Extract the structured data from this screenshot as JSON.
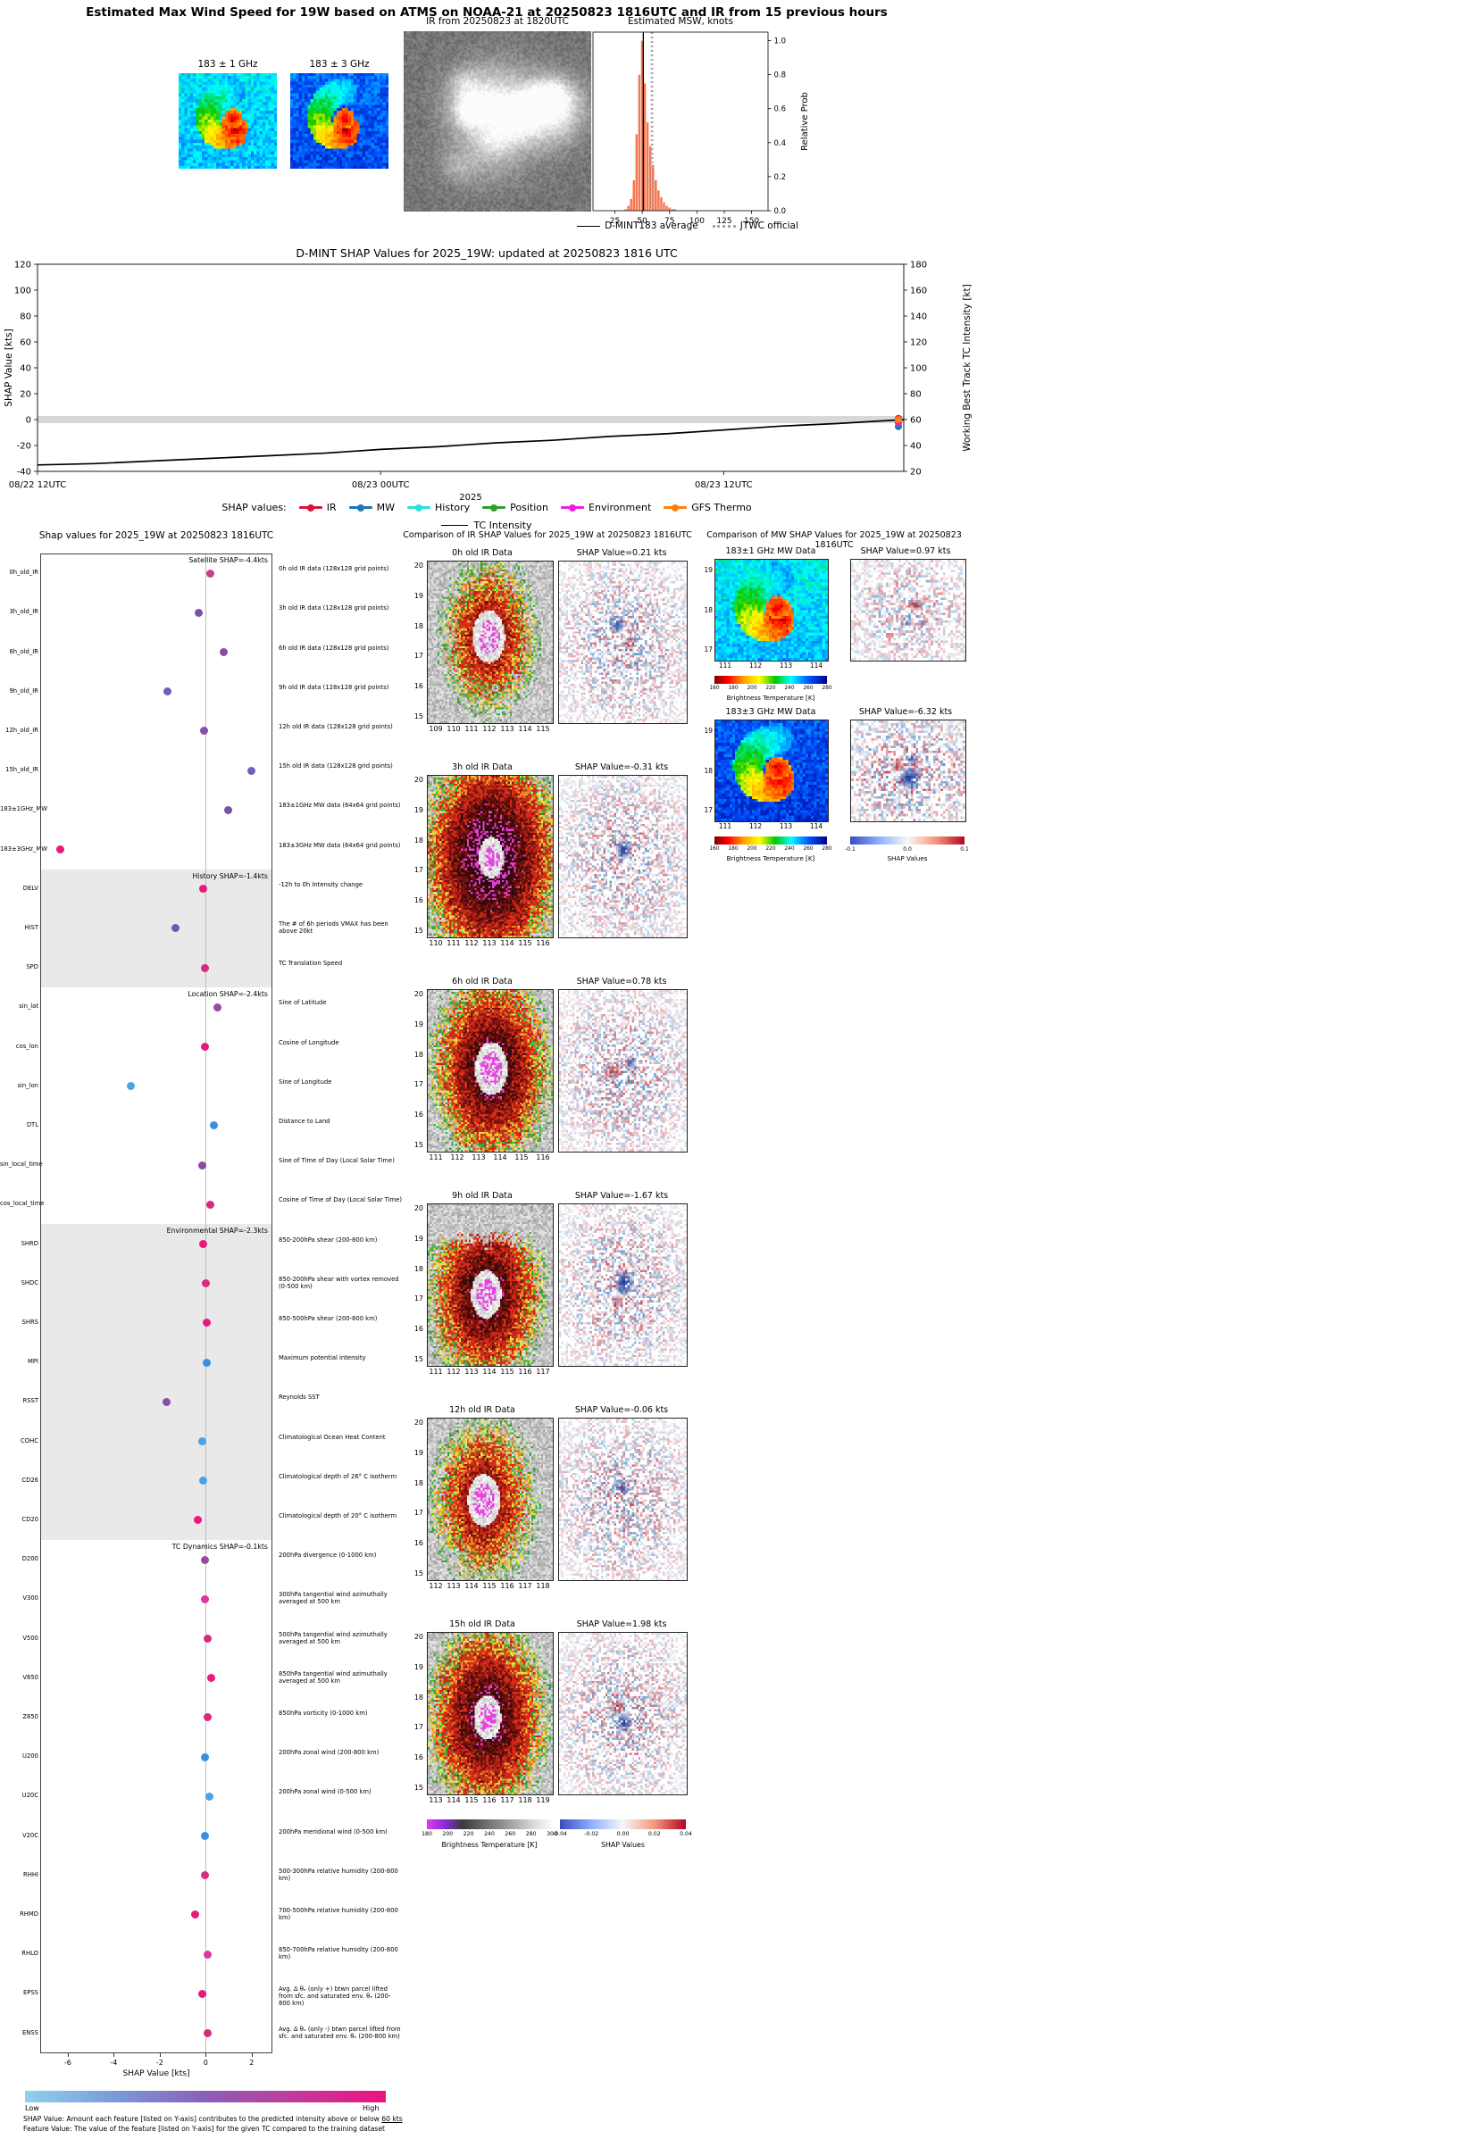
{
  "top": {
    "title": "Estimated Max Wind Speed for 19W based on ATMS on NOAA-21 at 20250823 1816UTC and IR from 15 previous hours",
    "ir_title": "IR from 20250823 at 1820UTC",
    "mw1_title": "183 ± 1 GHz",
    "mw2_title": "183 ± 3 GHz",
    "legend": {
      "avg": "D-MINT183 average",
      "jtwc": "JTWC official"
    }
  },
  "chart_data": [
    {
      "id": "msw_histogram",
      "type": "bar",
      "title": "Estimated MSW, knots",
      "ylabel": "Relative Prob",
      "xlim": [
        5,
        165
      ],
      "ylim": [
        0,
        1.05
      ],
      "xticks": [
        25,
        50,
        75,
        100,
        125,
        150
      ],
      "yticks": [
        "0.0",
        "0.2",
        "0.4",
        "0.6",
        "0.8",
        "1.0"
      ],
      "bin_width": 2.5,
      "bin_centers": [
        35,
        37.5,
        40,
        42.5,
        45,
        47.5,
        50,
        52.5,
        55,
        57.5,
        60,
        62.5,
        65,
        67.5,
        70,
        72.5,
        75,
        77.5,
        80
      ],
      "values": [
        0.01,
        0.03,
        0.07,
        0.18,
        0.45,
        0.8,
        1.0,
        0.75,
        0.52,
        0.38,
        0.27,
        0.18,
        0.12,
        0.08,
        0.05,
        0.03,
        0.02,
        0.01,
        0.01
      ],
      "avg_line": 51,
      "jtwc_line": 59,
      "bar_color": "#f4764f"
    },
    {
      "id": "shap_timeseries",
      "type": "line",
      "title": "D-MINT SHAP Values for 2025_19W: updated at 20250823 1816 UTC",
      "ylabel_left": "SHAP Value [kts]",
      "ylabel_right": "Working Best Track TC Intensity [kt]",
      "xlabel": "2025",
      "ylim_left": [
        -40,
        120
      ],
      "ylim_right": [
        20,
        180
      ],
      "xtick_labels": [
        "08/22 12UTC",
        "08/23 00UTC",
        "08/23 12UTC"
      ],
      "xtick_hours": [
        0,
        12,
        24
      ],
      "x_range_hours": [
        0,
        30.3
      ],
      "legend_label": "SHAP values:",
      "intensity_label": "TC Intensity",
      "intensity_color": "#000000",
      "zero_band_color": "#d8d8d8",
      "intensity": {
        "x": [
          0,
          2,
          4,
          6,
          8,
          10,
          12,
          14,
          16,
          18,
          20,
          22,
          24,
          26,
          28,
          30.3
        ],
        "y": [
          25,
          26,
          28,
          30,
          32,
          34,
          37,
          39,
          42,
          44,
          47,
          49,
          52,
          55,
          57,
          60
        ]
      },
      "final_shap_markers": [
        {
          "group": "IR",
          "color": "#dc143c",
          "value": 0.9
        },
        {
          "group": "MW",
          "color": "#1f77b4",
          "value": -5.4
        },
        {
          "group": "History",
          "color": "#29e0e0",
          "value": -1.4
        },
        {
          "group": "Position",
          "color": "#2ca02c",
          "value": -2.4
        },
        {
          "group": "Environment",
          "color": "#f01de0",
          "value": -2.3
        },
        {
          "group": "GFS Thermo",
          "color": "#ff7f0e",
          "value": -0.1
        }
      ]
    },
    {
      "id": "shap_features",
      "type": "scatter",
      "title": "Shap values for 2025_19W at 20250823 1816UTC",
      "xlabel": "SHAP Value [kts]",
      "xticks": [
        -6,
        -4,
        -2,
        0,
        2
      ],
      "xlim": [
        -7.2,
        2.9
      ],
      "sections": [
        {
          "name": "Satellite",
          "header": "Satellite SHAP=-4.4kts",
          "shaded": false,
          "features": [
            {
              "label": "0h_old_IR",
              "desc": "0h old IR data (128x128 grid points)",
              "value": 0.21,
              "color": "#c2408f"
            },
            {
              "label": "3h_old_IR",
              "desc": "3h old IR data (128x128 grid points)",
              "value": -0.31,
              "color": "#7b52a8"
            },
            {
              "label": "6h_old_IR",
              "desc": "6h old IR data (128x128 grid points)",
              "value": 0.78,
              "color": "#8a4da5"
            },
            {
              "label": "9h_old_IR",
              "desc": "9h old IR data (128x128 grid points)",
              "value": -1.67,
              "color": "#6a62b8"
            },
            {
              "label": "12h_old_IR",
              "desc": "12h old IR data (128x128 grid points)",
              "value": -0.06,
              "color": "#8a4da5"
            },
            {
              "label": "15h_old_IR",
              "desc": "15h old IR data (128x128 grid points)",
              "value": 1.98,
              "color": "#6a62b8"
            },
            {
              "label": "183±1GHz_MW",
              "desc": "183±1GHz MW data (64x64 grid points)",
              "value": 0.97,
              "color": "#7b52a8"
            },
            {
              "label": "183±3GHz_MW",
              "desc": "183±3GHz MW data (64x64 grid points)",
              "value": -6.32,
              "color": "#e8197f"
            }
          ]
        },
        {
          "name": "History",
          "header": "History SHAP=-1.4kts",
          "shaded": true,
          "features": [
            {
              "label": "DELV",
              "desc": "-12h to 0h Intensity change",
              "value": -0.1,
              "color": "#e8197f"
            },
            {
              "label": "HIST",
              "desc": "The # of 6h periods VMAX has been above 20kt",
              "value": -1.3,
              "color": "#7b52a8"
            },
            {
              "label": "SPD",
              "desc": "TC Translation Speed",
              "value": -0.05,
              "color": "#d92a7e"
            }
          ]
        },
        {
          "name": "Location",
          "header": "Location SHAP=-2.4kts",
          "shaded": false,
          "features": [
            {
              "label": "sin_lat",
              "desc": "Sine of Latitude",
              "value": 0.5,
              "color": "#9a49a0"
            },
            {
              "label": "cos_lon",
              "desc": "Cosine of Longitude",
              "value": -0.05,
              "color": "#e8197f"
            },
            {
              "label": "sin_lon",
              "desc": "Sine of Longitude",
              "value": -3.25,
              "color": "#4aa3e8"
            },
            {
              "label": "DTL",
              "desc": "Distance to Land",
              "value": 0.35,
              "color": "#3c8fe0"
            },
            {
              "label": "sin_local_time",
              "desc": "Sine of Time of Day (Local Solar Time)",
              "value": -0.15,
              "color": "#8a4da5"
            },
            {
              "label": "cos_local_time",
              "desc": "Cosine of Time of Day (Local Solar Time)",
              "value": 0.2,
              "color": "#d92a7e"
            }
          ]
        },
        {
          "name": "Environmental",
          "header": "Environmental SHAP=-2.3kts",
          "shaded": true,
          "features": [
            {
              "label": "SHRD",
              "desc": "850-200hPa shear (200-800 km)",
              "value": -0.1,
              "color": "#e8197f"
            },
            {
              "label": "SHDC",
              "desc": "850-200hPa shear with vortex removed (0-500 km)",
              "value": 0.0,
              "color": "#d92a7e"
            },
            {
              "label": "SHRS",
              "desc": "850-500hPa shear (200-800 km)",
              "value": 0.05,
              "color": "#e8197f"
            },
            {
              "label": "MPI",
              "desc": "Maximum potential intensity",
              "value": 0.05,
              "color": "#3c8fe0"
            },
            {
              "label": "RSST",
              "desc": "Reynolds SST",
              "value": -1.7,
              "color": "#8a4da5"
            },
            {
              "label": "COHC",
              "desc": "Climatological Ocean Heat Content",
              "value": -0.15,
              "color": "#4aa3e8"
            },
            {
              "label": "CD26",
              "desc": "Climatological depth of 26° C isotherm",
              "value": -0.1,
              "color": "#4aa3e8"
            },
            {
              "label": "CD20",
              "desc": "Climatological depth of 20° C isotherm",
              "value": -0.35,
              "color": "#e8197f"
            }
          ]
        },
        {
          "name": "TC Dynamics",
          "header": "TC Dynamics SHAP=-0.1kts",
          "shaded": false,
          "features": [
            {
              "label": "D200",
              "desc": "200hPa divergence (0-1000 km)",
              "value": -0.05,
              "color": "#9a49a0"
            },
            {
              "label": "V300",
              "desc": "300hPa tangential wind azimuthally averaged at 500 km",
              "value": -0.05,
              "color": "#e234a0"
            },
            {
              "label": "V500",
              "desc": "500hPa tangential wind azimuthally averaged at 500 km",
              "value": 0.1,
              "color": "#d92a7e"
            },
            {
              "label": "V850",
              "desc": "850hPa tangential wind azimuthally averaged at 500 km",
              "value": 0.25,
              "color": "#e8197f"
            },
            {
              "label": "Z850",
              "desc": "850hPa vorticity (0-1000 km)",
              "value": 0.1,
              "color": "#d92a7e"
            },
            {
              "label": "U200",
              "desc": "200hPa zonal wind (200-800 km)",
              "value": -0.05,
              "color": "#3c8fe0"
            },
            {
              "label": "U20C",
              "desc": "200hPa zonal wind (0-500 km)",
              "value": 0.15,
              "color": "#4aa3e8"
            },
            {
              "label": "V20C",
              "desc": "200hPa meridional wind (0-500 km)",
              "value": -0.05,
              "color": "#3c8fe0"
            },
            {
              "label": "RHHI",
              "desc": "500-300hPa relative humidity (200-800 km)",
              "value": -0.05,
              "color": "#d92a7e"
            },
            {
              "label": "RHMD",
              "desc": "700-500hPa relative humidity (200-800 km)",
              "value": -0.45,
              "color": "#e8197f"
            },
            {
              "label": "RHLO",
              "desc": "850-700hPa relative humidity (200-800 km)",
              "value": 0.1,
              "color": "#e234a0"
            },
            {
              "label": "EPSS",
              "desc": "Avg. Δ θₑ (only +) btwn parcel lifted from sfc. and saturated env. θₑ (200-800 km)",
              "value": -0.15,
              "color": "#e8197f"
            },
            {
              "label": "ENSS",
              "desc": "Avg. Δ θₑ (only -) btwn parcel lifted from sfc. and saturated env. θₑ (200-800 km)",
              "value": 0.1,
              "color": "#d92a7e"
            }
          ]
        }
      ],
      "colorbar": {
        "left": "Low",
        "right": "High"
      },
      "footnote1": "SHAP Value: Amount each feature [listed on Y-axis] contributes to the predicted intensity above or below ",
      "footnote1_underline": "60 kts",
      "footnote2": "Feature Value: The value of the feature [listed on Y-axis] for the given TC compared to the training dataset"
    },
    {
      "id": "ir_comparison",
      "type": "heatmap",
      "title": "Comparison of IR SHAP Values for 2025_19W at 20250823 1816UTC",
      "rows": [
        {
          "label": "0h old IR Data",
          "shap_label": "SHAP Value=0.21 kts",
          "xticks": [
            "109",
            "110",
            "111",
            "112",
            "113",
            "114",
            "115"
          ],
          "yticks": [
            "20",
            "19",
            "18",
            "17",
            "16",
            "15"
          ]
        },
        {
          "label": "3h old IR Data",
          "shap_label": "SHAP Value=-0.31 kts",
          "xticks": [
            "110",
            "111",
            "112",
            "113",
            "114",
            "115",
            "116"
          ],
          "yticks": [
            "20",
            "19",
            "18",
            "17",
            "16",
            "15"
          ]
        },
        {
          "label": "6h old IR Data",
          "shap_label": "SHAP Value=0.78 kts",
          "xticks": [
            "111",
            "112",
            "113",
            "114",
            "115",
            "116"
          ],
          "yticks": [
            "20",
            "19",
            "18",
            "17",
            "16",
            "15"
          ]
        },
        {
          "label": "9h old IR Data",
          "shap_label": "SHAP Value=-1.67 kts",
          "xticks": [
            "111",
            "112",
            "113",
            "114",
            "115",
            "116",
            "117"
          ],
          "yticks": [
            "20",
            "19",
            "18",
            "17",
            "16",
            "15"
          ]
        },
        {
          "label": "12h old IR Data",
          "shap_label": "SHAP Value=-0.06 kts",
          "xticks": [
            "112",
            "113",
            "114",
            "115",
            "116",
            "117",
            "118"
          ],
          "yticks": [
            "20",
            "19",
            "18",
            "17",
            "16",
            "15"
          ]
        },
        {
          "label": "15h old IR Data",
          "shap_label": "SHAP Value=1.98 kts",
          "xticks": [
            "113",
            "114",
            "115",
            "116",
            "117",
            "118",
            "119"
          ],
          "yticks": [
            "20",
            "19",
            "18",
            "17",
            "16",
            "15"
          ]
        }
      ],
      "bt_colorbar": {
        "label": "Brightness Temperature [K]",
        "ticks": [
          "180",
          "200",
          "220",
          "240",
          "260",
          "280",
          "300"
        ]
      },
      "shap_colorbar": {
        "label": "SHAP Values",
        "ticks": [
          "-0.04",
          "-0.02",
          "0.00",
          "0.02",
          "0.04"
        ]
      }
    },
    {
      "id": "mw_comparison",
      "type": "heatmap",
      "title": "Comparison of MW SHAP Values for 2025_19W at 20250823 1816UTC",
      "rows": [
        {
          "label": "183±1 GHz MW Data",
          "shap_label": "SHAP Value=0.97 kts",
          "xticks": [
            "111",
            "112",
            "113",
            "114"
          ],
          "yticks": [
            "19",
            "18",
            "17"
          ],
          "bt_label": "Brightness Temperature [K]",
          "bt_ticks": [
            "160",
            "180",
            "200",
            "220",
            "240",
            "260",
            "280"
          ]
        },
        {
          "label": "183±3 GHz MW Data",
          "shap_label": "SHAP Value=-6.32 kts",
          "xticks": [
            "111",
            "112",
            "113",
            "114"
          ],
          "yticks": [
            "19",
            "18",
            "17"
          ],
          "bt_label": "Brightness Temperature [K]",
          "bt_ticks": [
            "160",
            "180",
            "200",
            "220",
            "240",
            "260",
            "280"
          ]
        }
      ],
      "shap_colorbar": {
        "label": "SHAP Values",
        "ticks": [
          "-0.1",
          "0.0",
          "0.1"
        ]
      }
    }
  ]
}
